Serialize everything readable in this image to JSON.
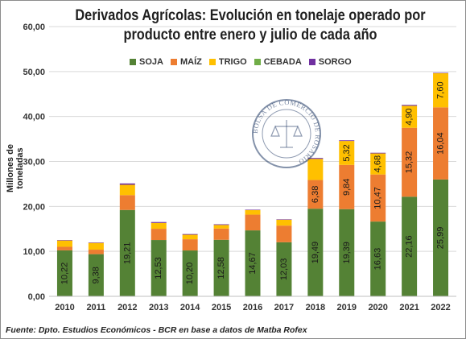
{
  "chart_data": {
    "type": "bar",
    "stacked": true,
    "title_lines": [
      "Derivados Agrícolas: Evolución en tonelaje operado por",
      "producto entre enero y julio de cada año"
    ],
    "ylabel": "Millones de toneladas",
    "ylim": [
      0,
      60
    ],
    "yticks": [
      "0,00",
      "10,00",
      "20,00",
      "30,00",
      "40,00",
      "50,00",
      "60,00"
    ],
    "categories": [
      "2010",
      "2011",
      "2012",
      "2013",
      "2014",
      "2015",
      "2016",
      "2017",
      "2018",
      "2019",
      "2020",
      "2021",
      "2022"
    ],
    "series": [
      {
        "name": "SOJA",
        "color": "#548235",
        "values": [
          10.22,
          9.38,
          19.21,
          12.53,
          10.2,
          12.58,
          14.67,
          12.03,
          19.49,
          19.39,
          16.63,
          22.16,
          25.99
        ],
        "labels": [
          "10,22",
          "9,38",
          "19,21",
          "12,53",
          "10,20",
          "12,58",
          "14,67",
          "12,03",
          "19,49",
          "19,39",
          "16,63",
          "22,16",
          "25,99"
        ]
      },
      {
        "name": "MAÍZ",
        "color": "#ed7d31",
        "values": [
          0.8,
          1.0,
          3.3,
          2.5,
          2.5,
          2.5,
          3.5,
          3.7,
          6.38,
          9.84,
          10.47,
          15.32,
          16.04
        ],
        "labels": [
          "",
          "",
          "",
          "",
          "",
          "",
          "",
          "",
          "6,38",
          "9,84",
          "10,47",
          "15,32",
          "16,04"
        ]
      },
      {
        "name": "TRIGO",
        "color": "#ffc000",
        "values": [
          1.4,
          1.5,
          2.3,
          1.3,
          1.0,
          0.8,
          1.0,
          1.3,
          4.7,
          5.32,
          4.68,
          4.9,
          7.6
        ],
        "labels": [
          "",
          "",
          "",
          "",
          "",
          "",
          "",
          "",
          "",
          "5,32",
          "4,68",
          "4,90",
          "7,60"
        ]
      },
      {
        "name": "CEBADA",
        "color": "#70ad47",
        "values": [
          0,
          0,
          0,
          0,
          0,
          0,
          0,
          0,
          0,
          0,
          0,
          0,
          0
        ],
        "labels": [
          "",
          "",
          "",
          "",
          "",
          "",
          "",
          "",
          "",
          "",
          "",
          "",
          ""
        ]
      },
      {
        "name": "SORGO",
        "color": "#7030a0",
        "values": [
          0.1,
          0.1,
          0.3,
          0.2,
          0.15,
          0.15,
          0.1,
          0.1,
          0.2,
          0.15,
          0.15,
          0.2,
          0.1
        ],
        "labels": [
          "",
          "",
          "",
          "",
          "",
          "",
          "",
          "",
          "",
          "",
          "",
          "",
          ""
        ]
      }
    ],
    "grid": true,
    "legend_position": "top"
  },
  "source": "Fuente: Dpto. Estudios Económicos - BCR en base a datos de Matba Rofex",
  "watermark": "BOLSA DE COMERCIO DE ROSARIO"
}
